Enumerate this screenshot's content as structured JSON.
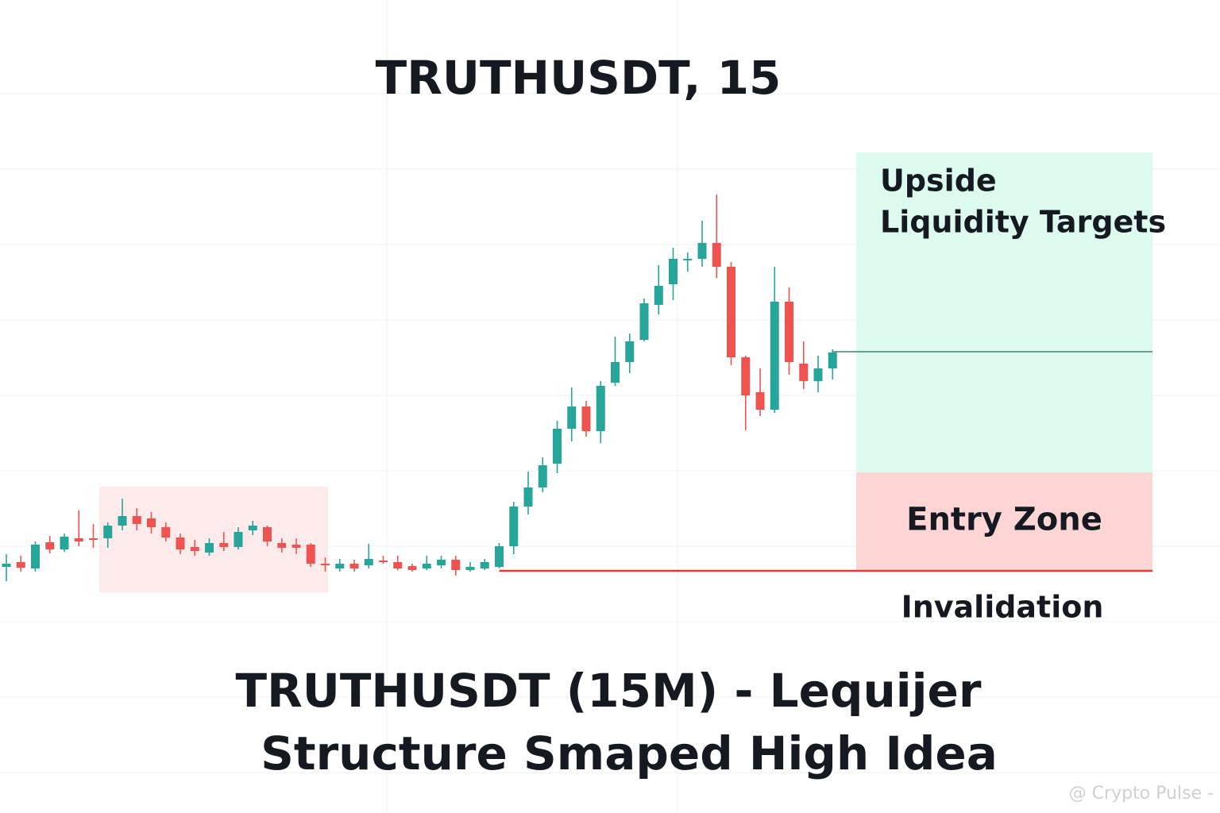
{
  "chart_data": {
    "type": "candlestick",
    "title": "TRUTHUSDT, 15",
    "caption": [
      "TRUTHUSDT (15M) - Lequijer",
      "Structure Smaped High Idea"
    ],
    "watermark": "@ Crypto Pulse -",
    "ylim": [
      0,
      1024
    ],
    "up_color": "#26a69a",
    "down_color": "#ef5350",
    "open": [
      310,
      316,
      308,
      341,
      332,
      346,
      346,
      346,
      362,
      374,
      371,
      360,
      347,
      335,
      328,
      340,
      335,
      356,
      360,
      340,
      338,
      338,
      314,
      308,
      314,
      312,
      318,
      316,
      311,
      308,
      312,
      319,
      306,
      308,
      310,
      336,
      386,
      410,
      440,
      484,
      512,
      481,
      542,
      568,
      596,
      640,
      666,
      696,
      698,
      718,
      688,
      574,
      530,
      508,
      644,
      566,
      544,
      560
    ],
    "high": [
      326,
      324,
      342,
      349,
      352,
      381,
      364,
      366,
      396,
      384,
      379,
      366,
      352,
      344,
      346,
      354,
      360,
      368,
      362,
      346,
      346,
      340,
      322,
      320,
      319,
      339,
      324,
      324,
      314,
      324,
      324,
      324,
      316,
      320,
      340,
      392,
      430,
      448,
      494,
      536,
      519,
      544,
      600,
      604,
      648,
      690,
      712,
      706,
      746,
      779,
      694,
      576,
      560,
      688,
      662,
      594,
      576,
      584
    ],
    "low": [
      292,
      304,
      304,
      327,
      329,
      336,
      334,
      334,
      356,
      356,
      352,
      342,
      326,
      324,
      324,
      330,
      332,
      350,
      336,
      328,
      326,
      310,
      304,
      304,
      304,
      308,
      314,
      306,
      304,
      306,
      308,
      299,
      304,
      306,
      308,
      326,
      376,
      404,
      428,
      468,
      474,
      466,
      538,
      554,
      594,
      628,
      646,
      682,
      688,
      674,
      564,
      482,
      500,
      504,
      552,
      534,
      530,
      546
    ],
    "close": [
      314,
      309,
      338,
      332,
      348,
      342,
      344,
      362,
      374,
      364,
      360,
      347,
      332,
      330,
      340,
      335,
      354,
      362,
      342,
      334,
      334,
      314,
      312,
      314,
      308,
      320,
      317,
      308,
      306,
      314,
      319,
      306,
      310,
      316,
      336,
      386,
      410,
      438,
      484,
      512,
      481,
      538,
      568,
      594,
      642,
      664,
      698,
      698,
      718,
      688,
      574,
      526,
      508,
      644,
      568,
      544,
      560,
      580
    ],
    "last_price": 581,
    "zones": [
      {
        "label": [
          "Upside",
          "Liquidity Targets"
        ],
        "from": 429,
        "to": 832,
        "color": "#dcfaee"
      },
      {
        "label": [
          "Entry Zone"
        ],
        "from": 306,
        "to": 429,
        "color": "#fdd5d5"
      }
    ],
    "invalidation": {
      "label": "Invalidation",
      "value": 305,
      "color": "#e53935"
    }
  }
}
